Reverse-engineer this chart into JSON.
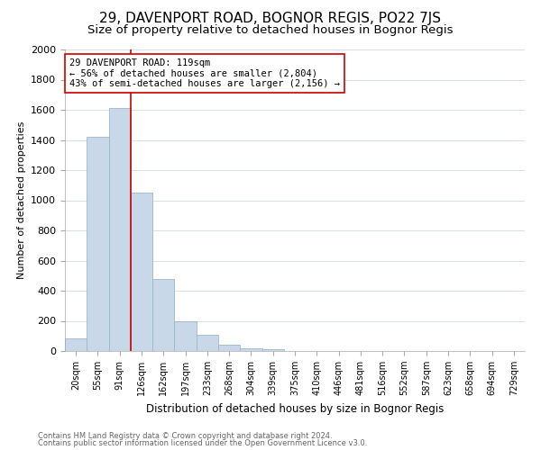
{
  "title": "29, DAVENPORT ROAD, BOGNOR REGIS, PO22 7JS",
  "subtitle": "Size of property relative to detached houses in Bognor Regis",
  "xlabel": "Distribution of detached houses by size in Bognor Regis",
  "ylabel": "Number of detached properties",
  "bar_labels": [
    "20sqm",
    "55sqm",
    "91sqm",
    "126sqm",
    "162sqm",
    "197sqm",
    "233sqm",
    "268sqm",
    "304sqm",
    "339sqm",
    "375sqm",
    "410sqm",
    "446sqm",
    "481sqm",
    "516sqm",
    "552sqm",
    "587sqm",
    "623sqm",
    "658sqm",
    "694sqm",
    "729sqm"
  ],
  "bar_values": [
    85,
    1420,
    1610,
    1050,
    480,
    200,
    105,
    40,
    20,
    10,
    0,
    0,
    0,
    0,
    0,
    0,
    0,
    0,
    0,
    0,
    0
  ],
  "bar_color": "#c8d8e8",
  "bar_edge_color": "#9ab8cc",
  "vline_color": "#cc0000",
  "annotation_line1": "29 DAVENPORT ROAD: 119sqm",
  "annotation_line2": "← 56% of detached houses are smaller (2,804)",
  "annotation_line3": "43% of semi-detached houses are larger (2,156) →",
  "annotation_box_color": "#ffffff",
  "annotation_box_edge": "#cc0000",
  "ylim": [
    0,
    2000
  ],
  "yticks": [
    0,
    200,
    400,
    600,
    800,
    1000,
    1200,
    1400,
    1600,
    1800,
    2000
  ],
  "footer1": "Contains HM Land Registry data © Crown copyright and database right 2024.",
  "footer2": "Contains public sector information licensed under the Open Government Licence v3.0.",
  "title_fontsize": 11,
  "subtitle_fontsize": 9.5,
  "background_color": "#ffffff",
  "grid_color": "#d8e0e8"
}
